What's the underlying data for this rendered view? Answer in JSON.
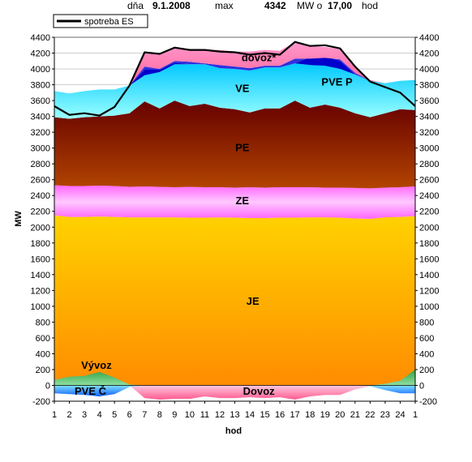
{
  "header": {
    "date_prefix": "dňa",
    "date": "9.1.2008",
    "max_label": "max",
    "max_value": "4342",
    "unit_text": "MW o",
    "time_value": "17,00",
    "time_unit": "hod"
  },
  "legend": {
    "line_label": "spotreba ES"
  },
  "chart_data": {
    "type": "area",
    "ylabel": "MW",
    "xlabel": "hod",
    "ylim": [
      -200,
      4400
    ],
    "yticks": [
      -200,
      0,
      200,
      400,
      600,
      800,
      1000,
      1200,
      1400,
      1600,
      1800,
      2000,
      2200,
      2400,
      2600,
      2800,
      3000,
      3200,
      3400,
      3600,
      3800,
      4000,
      4200,
      4400
    ],
    "x_labels": [
      "1",
      "2",
      "3",
      "4",
      "5",
      "6",
      "7",
      "8",
      "9",
      "10",
      "11",
      "12",
      "13",
      "14",
      "15",
      "16",
      "17",
      "18",
      "19",
      "20",
      "21",
      "22",
      "23",
      "24",
      "1"
    ],
    "series_labels": {
      "JE": "JE",
      "ZE": "ZE",
      "PE": "PE",
      "VE": "VE",
      "PVE_P": "PVE P",
      "dovoz_top": "dovoz*",
      "PVE_C": "PVE Č",
      "Vyvoz": "Vývoz",
      "Dovoz": "Dovoz"
    },
    "boundaries": {
      "JE_top": [
        2150,
        2130,
        2130,
        2135,
        2130,
        2125,
        2125,
        2125,
        2125,
        2120,
        2120,
        2125,
        2120,
        2115,
        2115,
        2120,
        2120,
        2125,
        2125,
        2120,
        2110,
        2105,
        2125,
        2130,
        2140
      ],
      "ZE_top": [
        2530,
        2520,
        2520,
        2525,
        2520,
        2510,
        2515,
        2510,
        2505,
        2510,
        2505,
        2505,
        2500,
        2505,
        2500,
        2505,
        2505,
        2505,
        2500,
        2500,
        2495,
        2490,
        2500,
        2505,
        2515
      ],
      "PE_top": [
        3390,
        3370,
        3390,
        3400,
        3410,
        3440,
        3590,
        3500,
        3600,
        3530,
        3560,
        3510,
        3490,
        3450,
        3500,
        3500,
        3600,
        3510,
        3550,
        3510,
        3440,
        3390,
        3440,
        3490,
        3480
      ],
      "VE_top": [
        3720,
        3690,
        3720,
        3740,
        3740,
        3790,
        3920,
        3960,
        4060,
        4060,
        4060,
        4010,
        4000,
        3980,
        4020,
        4020,
        4070,
        4050,
        4040,
        4000,
        3930,
        3850,
        3820,
        3850,
        3860
      ],
      "PVEP_top": [
        3720,
        3690,
        3720,
        3740,
        3740,
        3790,
        3990,
        3990,
        4080,
        4060,
        4060,
        4010,
        4000,
        3980,
        4020,
        4020,
        4070,
        4150,
        4160,
        4100,
        3930,
        3850,
        3820,
        3850,
        3860
      ],
      "blue_top": [
        3720,
        3690,
        3720,
        3740,
        3740,
        3790,
        4030,
        4000,
        4100,
        4090,
        4070,
        4050,
        4030,
        4010,
        4040,
        4040,
        4130,
        4130,
        4140,
        4120,
        3950,
        3850,
        3820,
        3850,
        3860
      ],
      "dovoz_top": [
        3720,
        3690,
        3720,
        3740,
        3740,
        3790,
        4210,
        4190,
        4270,
        4240,
        4240,
        4240,
        4220,
        4220,
        4240,
        4230,
        4340,
        4290,
        4280,
        4250,
        4030,
        3860,
        3820,
        3850,
        3860
      ],
      "spotreba": [
        3530,
        3420,
        3440,
        3410,
        3520,
        3790,
        4210,
        4190,
        4270,
        4240,
        4240,
        4220,
        4210,
        4180,
        4200,
        4180,
        4342,
        4290,
        4300,
        4260,
        4030,
        3840,
        3770,
        3700,
        3530
      ],
      "Vyvoz": [
        70,
        110,
        120,
        170,
        100,
        10,
        0,
        0,
        0,
        0,
        0,
        0,
        0,
        0,
        0,
        0,
        0,
        0,
        0,
        0,
        0,
        0,
        20,
        60,
        200
      ],
      "Dovoz_bottom": [
        0,
        0,
        0,
        0,
        0,
        0,
        -160,
        -180,
        -170,
        -170,
        -140,
        -160,
        -160,
        -150,
        -160,
        -150,
        -180,
        -140,
        -120,
        -120,
        -50,
        -10,
        0,
        0,
        0
      ],
      "PVEC_bottom": [
        -100,
        -110,
        -120,
        -140,
        -110,
        -20,
        0,
        0,
        0,
        0,
        0,
        0,
        0,
        0,
        0,
        0,
        0,
        0,
        0,
        0,
        0,
        -10,
        -60,
        -100,
        -100
      ]
    },
    "colors": {
      "JE_top": "#ffd000",
      "JE_bottom": "#ff9000",
      "ZE_top": "#ff80ff",
      "ZE_mid": "#ffc0ff",
      "PE_top": "#6a0000",
      "PE_bottom": "#b04000",
      "VE_top": "#00ccff",
      "VE_bottom": "#80ffff",
      "PVEP": "#0000cc",
      "dovoz": "#ff88b8",
      "Vyvoz": "#40b060",
      "Dovoz": "#ff70a0",
      "PVEC": "#2080ff",
      "line": "#000000",
      "grid": "#b0b0b0"
    }
  }
}
